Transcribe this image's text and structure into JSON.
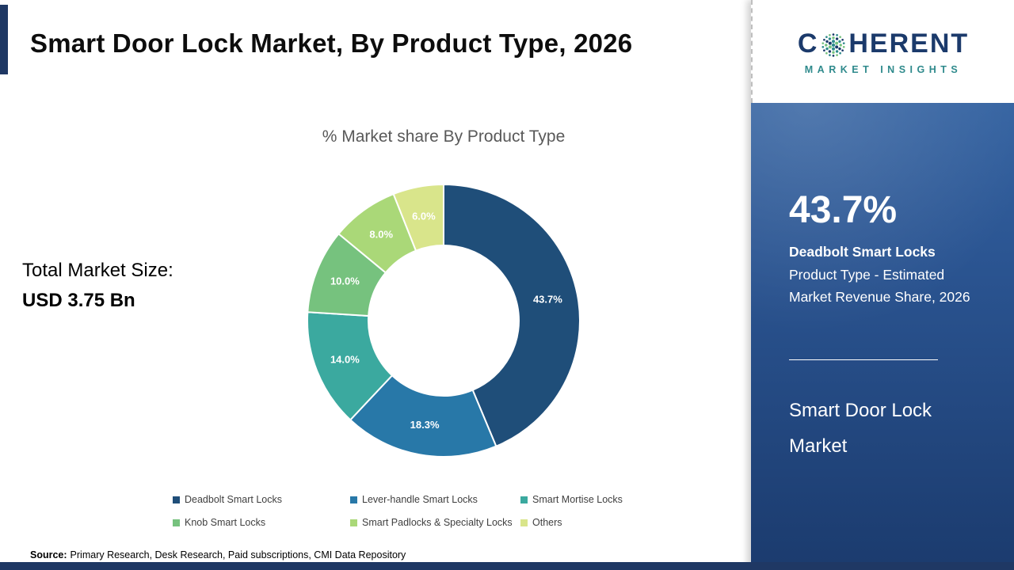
{
  "header": {
    "title": "Smart Door Lock Market, By Product Type, 2026"
  },
  "chart_data": {
    "type": "pie",
    "donut": true,
    "title": "% Market share By Product Type",
    "categories": [
      "Deadbolt Smart Locks",
      "Lever-handle Smart Locks",
      "Smart Mortise Locks",
      "Knob Smart Locks",
      "Smart Padlocks & Specialty Locks",
      "Others"
    ],
    "values": [
      43.7,
      18.3,
      14.0,
      10.0,
      8.0,
      6.0
    ],
    "labels": [
      "43.7%",
      "18.3%",
      "14.0%",
      "10.0%",
      "8.0%",
      "6.0%"
    ],
    "colors": [
      "#1F4E79",
      "#2878A8",
      "#3BA99F",
      "#76C27E",
      "#AAD878",
      "#D9E58B"
    ],
    "legend_position": "bottom"
  },
  "left": {
    "total_label": "Total Market Size:",
    "total_value": "USD 3.75 Bn"
  },
  "source": {
    "label": "Source:",
    "text": "Primary Research, Desk Research, Paid subscriptions, CMI Data Repository"
  },
  "logo": {
    "part1": "C",
    "part2": "HERENT",
    "subtitle": "MARKET INSIGHTS"
  },
  "panel": {
    "stat": "43.7%",
    "product": "Deadbolt Smart Locks",
    "desc": "Product Type - Estimated Market Revenue Share, 2026",
    "market": "Smart Door Lock Market"
  },
  "theme": {
    "navy": "#1F3864",
    "teal": "#2F8A8C",
    "panel_blue_top": "#3C6DAC",
    "panel_blue_bottom": "#1B3B6E"
  }
}
